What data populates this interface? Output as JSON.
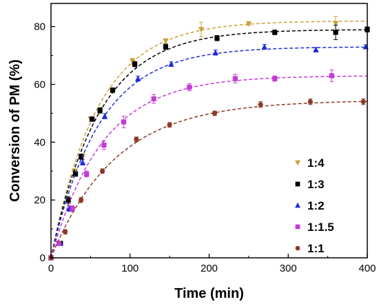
{
  "chart_data": {
    "type": "scatter",
    "title": "",
    "xlabel": "Time (min)",
    "ylabel": "Conversion of PM (%)",
    "xlim": [
      0,
      400
    ],
    "ylim": [
      0,
      88
    ],
    "x_ticks": [
      0,
      100,
      200,
      300,
      400
    ],
    "y_ticks": [
      0,
      20,
      40,
      60,
      80
    ],
    "legend_position": "bottom-right",
    "fit_lines": "dashed",
    "series": [
      {
        "name": "1:4",
        "color": "#c9a13b",
        "marker": "triangle-down",
        "fit_plateau": 82,
        "points": [
          [
            0,
            0
          ],
          [
            10,
            5
          ],
          [
            22,
            19
          ],
          [
            30,
            30
          ],
          [
            40,
            35
          ],
          [
            50,
            48
          ],
          [
            62,
            51
          ],
          [
            77,
            58
          ],
          [
            103,
            68
          ],
          [
            145,
            75
          ],
          [
            190,
            79
          ],
          [
            250,
            81
          ],
          [
            360,
            81
          ]
        ],
        "errors": [
          0,
          0,
          1,
          0.8,
          1,
          0.8,
          1,
          0.8,
          1,
          0.8,
          2.5,
          0.6,
          2.5
        ]
      },
      {
        "name": "1:3",
        "color": "#000000",
        "marker": "square",
        "fit_plateau": 79,
        "points": [
          [
            0,
            0
          ],
          [
            12,
            5
          ],
          [
            22,
            20
          ],
          [
            31,
            29
          ],
          [
            38,
            35
          ],
          [
            52,
            48
          ],
          [
            62,
            51
          ],
          [
            78,
            58
          ],
          [
            106,
            67
          ],
          [
            145,
            73
          ],
          [
            210,
            76
          ],
          [
            283,
            78
          ],
          [
            360,
            78
          ],
          [
            400,
            79
          ]
        ],
        "errors": [
          0,
          0,
          1.2,
          0.8,
          0.9,
          0.8,
          0.9,
          0.8,
          0.9,
          0.9,
          0.9,
          0.8,
          2.5,
          0.9
        ]
      },
      {
        "name": "1:2",
        "color": "#1f2cd8",
        "marker": "triangle-up",
        "fit_plateau": 73,
        "points": [
          [
            0,
            0
          ],
          [
            12,
            5
          ],
          [
            23,
            17
          ],
          [
            40,
            33
          ],
          [
            68,
            49
          ],
          [
            110,
            62
          ],
          [
            152,
            67
          ],
          [
            208,
            71
          ],
          [
            270,
            73
          ],
          [
            335,
            72
          ],
          [
            398,
            73
          ]
        ],
        "errors": [
          0,
          0,
          0.9,
          0.9,
          0.9,
          0.9,
          0.8,
          0.9,
          0.8,
          0.8,
          0.7
        ]
      },
      {
        "name": "1:1.5",
        "color": "#c33bd6",
        "marker": "square",
        "fit_plateau": 63,
        "points": [
          [
            0,
            0
          ],
          [
            10,
            5
          ],
          [
            27,
            17
          ],
          [
            45,
            29
          ],
          [
            67,
            39
          ],
          [
            92,
            47
          ],
          [
            130,
            55
          ],
          [
            175,
            59
          ],
          [
            233,
            62
          ],
          [
            283,
            62
          ],
          [
            355,
            63
          ]
        ],
        "errors": [
          0,
          0,
          1,
          1,
          1.5,
          2,
          1.5,
          1.2,
          1.5,
          0.9,
          2
        ]
      },
      {
        "name": "1:1",
        "color": "#8b3a2a",
        "marker": "circle",
        "fit_plateau": 54.5,
        "points": [
          [
            0,
            0
          ],
          [
            18,
            9
          ],
          [
            38,
            20
          ],
          [
            65,
            30
          ],
          [
            108,
            41
          ],
          [
            150,
            46
          ],
          [
            207,
            50
          ],
          [
            265,
            53
          ],
          [
            328,
            54
          ],
          [
            395,
            54
          ]
        ],
        "errors": [
          0,
          0.8,
          0.9,
          0.8,
          0.8,
          0.8,
          0.8,
          1,
          1,
          1
        ]
      }
    ]
  }
}
